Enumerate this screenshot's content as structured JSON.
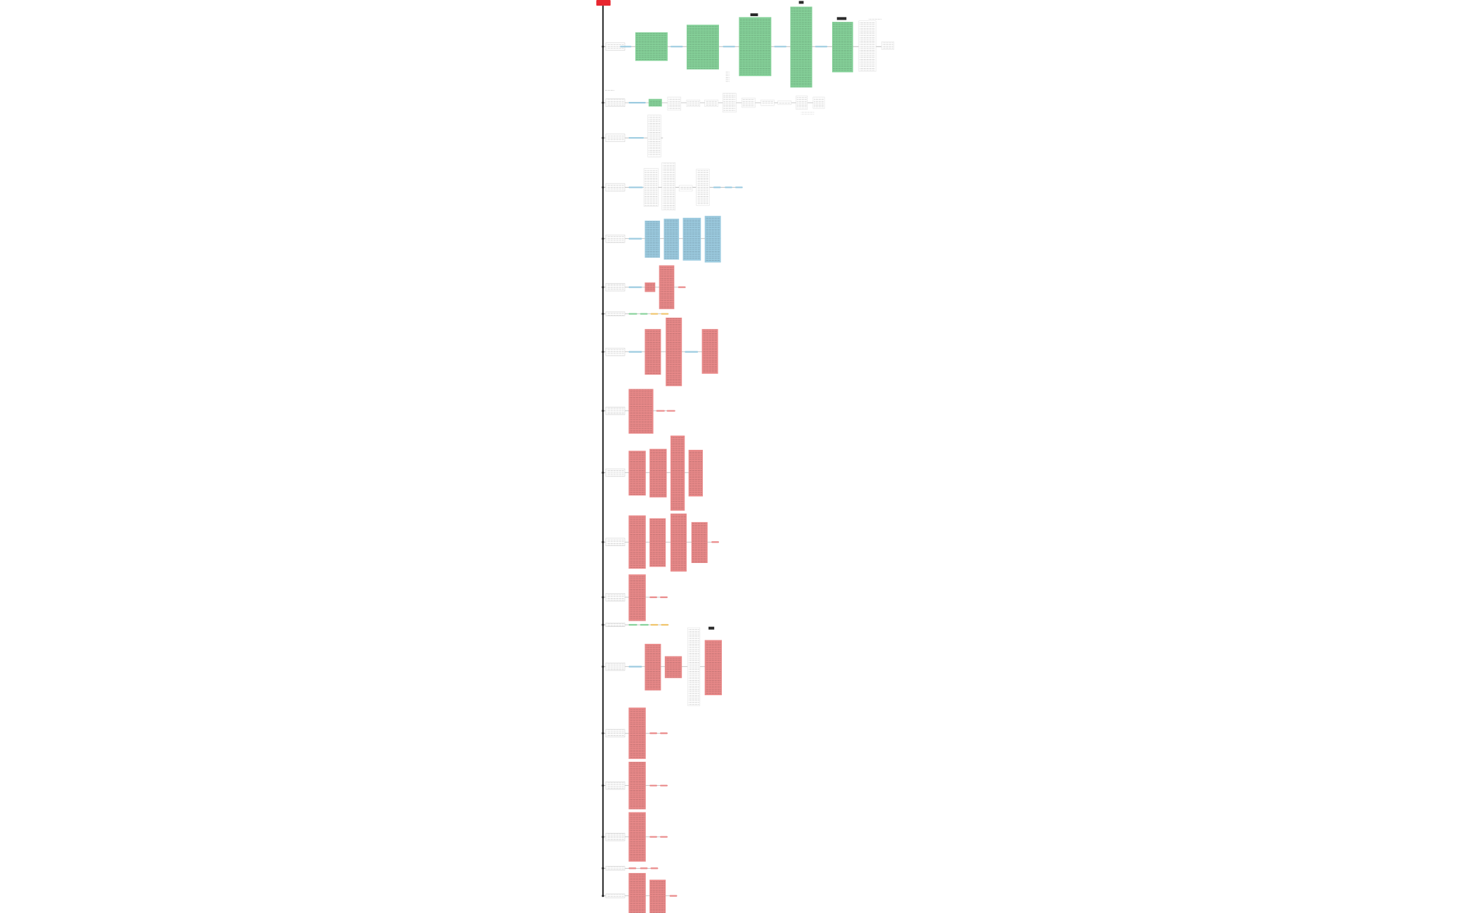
{
  "palette": {
    "green": "#86d29a",
    "blue": "#9ccbe0",
    "red": "#ea8a8a",
    "orange": "#f0c46a",
    "node": "#ffffff",
    "root": "#e8262f",
    "tag": "#2b2b2b",
    "trunk": "#222222",
    "link": "#b8b8b8",
    "text": "#6f6f6f"
  }
}
